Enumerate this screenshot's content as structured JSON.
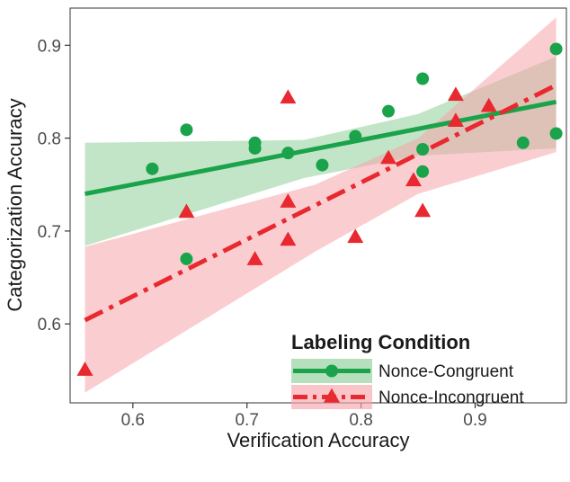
{
  "chart_data": {
    "type": "scatter",
    "xlabel": "Verification Accuracy",
    "ylabel": "Categorization Accuracy",
    "xlim": [
      0.545,
      0.98
    ],
    "ylim": [
      0.515,
      0.94
    ],
    "x_ticks": [
      0.6,
      0.7,
      0.8,
      0.9
    ],
    "x_tick_labels": [
      "0.6",
      "0.7",
      "0.8",
      "0.9"
    ],
    "y_ticks": [
      0.6,
      0.7,
      0.8,
      0.9
    ],
    "y_tick_labels": [
      "0.6",
      "0.7",
      "0.8",
      "0.9"
    ],
    "grid": false,
    "legend": {
      "title": "Labeling Condition",
      "placement": "bottom-right inside"
    },
    "series": [
      {
        "name": "Nonce-Congruent",
        "marker": "circle",
        "line_style": "solid",
        "color": "#1aa34a",
        "band_color": "#8fd09a",
        "points": [
          [
            0.617,
            0.767
          ],
          [
            0.647,
            0.809
          ],
          [
            0.647,
            0.67
          ],
          [
            0.707,
            0.795
          ],
          [
            0.707,
            0.789
          ],
          [
            0.736,
            0.784
          ],
          [
            0.766,
            0.771
          ],
          [
            0.795,
            0.802
          ],
          [
            0.824,
            0.829
          ],
          [
            0.854,
            0.864
          ],
          [
            0.854,
            0.788
          ],
          [
            0.854,
            0.764
          ],
          [
            0.942,
            0.795
          ],
          [
            0.971,
            0.896
          ],
          [
            0.971,
            0.805
          ]
        ],
        "fit": {
          "x": [
            0.558,
            0.971
          ],
          "y": [
            0.74,
            0.839
          ]
        },
        "band": {
          "x": [
            0.558,
            0.75,
            0.85,
            0.971
          ],
          "lower": [
            0.684,
            0.757,
            0.781,
            0.789
          ],
          "upper": [
            0.795,
            0.798,
            0.826,
            0.888
          ]
        }
      },
      {
        "name": "Nonce-Incongruent",
        "marker": "triangle",
        "line_style": "dashed",
        "color": "#e8292f",
        "band_color": "#f6a6ac",
        "points": [
          [
            0.558,
            0.55
          ],
          [
            0.647,
            0.72
          ],
          [
            0.707,
            0.669
          ],
          [
            0.736,
            0.843
          ],
          [
            0.736,
            0.731
          ],
          [
            0.736,
            0.69
          ],
          [
            0.795,
            0.693
          ],
          [
            0.824,
            0.778
          ],
          [
            0.846,
            0.754
          ],
          [
            0.854,
            0.721
          ],
          [
            0.883,
            0.846
          ],
          [
            0.883,
            0.818
          ],
          [
            0.912,
            0.834
          ]
        ],
        "fit": {
          "x": [
            0.558,
            0.971
          ],
          "y": [
            0.604,
            0.857
          ]
        },
        "band": {
          "x": [
            0.558,
            0.76,
            0.85,
            0.971
          ],
          "lower": [
            0.526,
            0.678,
            0.74,
            0.785
          ],
          "upper": [
            0.683,
            0.75,
            0.8,
            0.93
          ]
        }
      }
    ]
  }
}
